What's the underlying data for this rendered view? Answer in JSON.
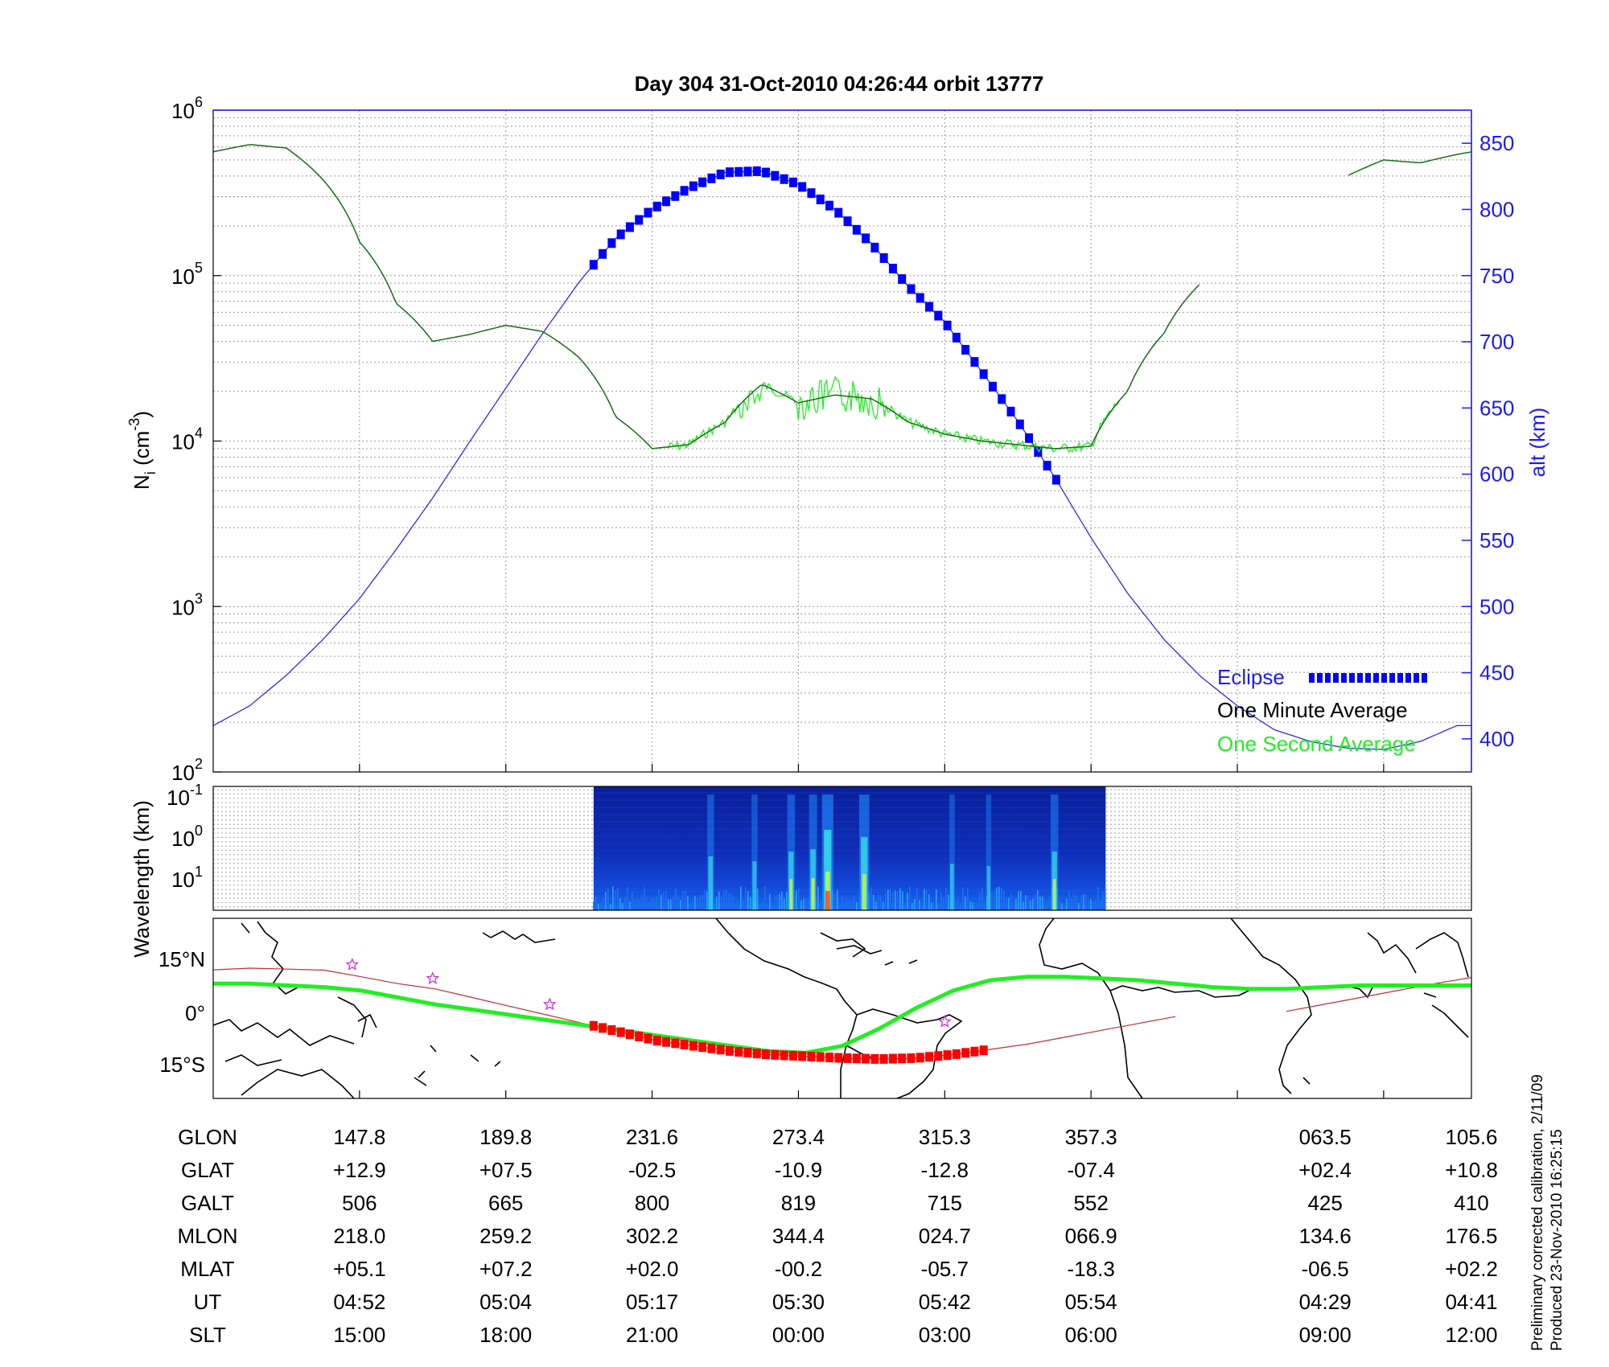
{
  "title": "Day 304  31-Oct-2010 04:26:44   orbit 13777",
  "colors": {
    "alt": "#1a1aff",
    "minute": "#1a6b1a",
    "second": "#22ee22",
    "eclipse": "#0000ff",
    "track": "#22ee22",
    "orbit": "#c03030",
    "eclipse_track": "#ff0000",
    "star": "#cc33cc"
  },
  "chart_data": [
    {
      "type": "line",
      "title": "Day 304  31-Oct-2010 04:26:44   orbit 13777",
      "ylabel_left": "N",
      "ylabel_left_sub": "i",
      "ylabel_left_unit": " (cm",
      "ylabel_left_exp": "-3",
      "ylabel_left_close": ")",
      "ylabel_right": "alt (km)",
      "y_left_scale": "log",
      "y_left_range": [
        100,
        1000000
      ],
      "y_left_ticks": [
        {
          "base": "10",
          "exp": "2"
        },
        {
          "base": "10",
          "exp": "3"
        },
        {
          "base": "10",
          "exp": "4"
        },
        {
          "base": "10",
          "exp": "5"
        },
        {
          "base": "10",
          "exp": "6"
        }
      ],
      "y_right_range": [
        375,
        875
      ],
      "y_right_ticks": [
        "400",
        "450",
        "500",
        "550",
        "600",
        "650",
        "700",
        "750",
        "800",
        "850"
      ],
      "grid": true,
      "legend_position": "bottom-right",
      "legend": {
        "eclipse": "Eclipse",
        "minute": "One Minute Average",
        "second": "One Second Average"
      },
      "x": [
        0,
        0.25,
        0.5,
        0.75,
        1,
        1.25,
        1.5,
        1.75,
        2,
        2.25,
        2.5,
        2.75,
        3,
        3.25,
        3.5,
        3.75,
        4,
        4.25,
        4.5,
        4.75,
        5,
        5.25,
        5.5,
        5.75,
        6,
        6.25,
        6.5,
        6.75,
        7,
        7.25,
        7.5,
        7.75,
        8,
        8.25,
        8.5,
        8.6
      ],
      "altitude_km": [
        410,
        425,
        448,
        475,
        506,
        543,
        582,
        624,
        665,
        706,
        745,
        778,
        800,
        816,
        828,
        829,
        819,
        800,
        774,
        742,
        715,
        678,
        640,
        598,
        552,
        510,
        475,
        447,
        425,
        407,
        398,
        393,
        392,
        398,
        410,
        410
      ],
      "ion_density_minute": [
        560000,
        620000,
        590000,
        380000,
        160000,
        68000,
        40000,
        44000,
        50000,
        46000,
        32000,
        14000,
        9000,
        9500,
        13000,
        22000,
        17000,
        19000,
        18000,
        13000,
        11000,
        10000,
        9500,
        9000,
        9300,
        20000,
        45000,
        90000,
        null,
        null,
        null,
        400000,
        500000,
        480000,
        540000,
        560000
      ],
      "ion_density_second_span": [
        3.1,
        6.2
      ],
      "eclipse_span": [
        2.6,
        5.8
      ]
    },
    {
      "type": "heatmap",
      "ylabel": "Wavelength (km)",
      "y_ticks": [
        {
          "base": "10",
          "exp": "-1"
        },
        {
          "base": "10",
          "exp": "0"
        },
        {
          "base": "10",
          "exp": "1"
        }
      ],
      "x_span": [
        2.6,
        6.1
      ],
      "intensity_peaks": [
        {
          "x": 3.4,
          "strength": 0.45
        },
        {
          "x": 3.7,
          "strength": 0.35
        },
        {
          "x": 3.95,
          "strength": 0.55
        },
        {
          "x": 4.1,
          "strength": 0.6
        },
        {
          "x": 4.2,
          "strength": 1.0
        },
        {
          "x": 4.45,
          "strength": 0.85
        },
        {
          "x": 5.05,
          "strength": 0.3
        },
        {
          "x": 5.75,
          "strength": 0.55
        },
        {
          "x": 5.3,
          "strength": 0.25
        }
      ]
    },
    {
      "type": "map",
      "lat_ticks": [
        "15°N",
        "0°",
        "15°S"
      ],
      "track_lat": [
        9,
        9,
        8.5,
        8,
        7,
        5,
        3,
        1.5,
        0,
        -1.5,
        -3,
        -4.5,
        -6,
        -7.5,
        -9,
        -10.5,
        -11,
        -9,
        -4,
        2,
        7,
        10,
        11,
        11,
        10.5,
        10,
        9,
        8,
        7.5,
        7.5,
        8,
        8.5,
        8.5,
        8.5,
        8.5
      ],
      "orbit_lat": [
        13,
        13.5,
        13.2,
        12.9,
        11,
        9,
        7.5,
        5,
        2.5,
        0,
        -2.5,
        -5,
        -7.5,
        -9,
        -10.5,
        -11.5,
        -12,
        -12.5,
        -12.8,
        -12.5,
        -11.5,
        -10,
        -8.5,
        -6.5,
        -4.5,
        -2.5,
        -0.5,
        null,
        null,
        1,
        3,
        5,
        7,
        9,
        10.8
      ],
      "stars": [
        {
          "x": 0.95,
          "lat": 14.5
        },
        {
          "x": 1.5,
          "lat": 10.5
        },
        {
          "x": 2.3,
          "lat": 3
        },
        {
          "x": 5.0,
          "lat": -2
        }
      ],
      "eclipse_span": [
        2.6,
        5.3
      ]
    }
  ],
  "table": {
    "rows": [
      {
        "label": "GLON",
        "values": [
          "147.8",
          "189.8",
          "231.6",
          "273.4",
          "315.3",
          "357.3",
          "063.5",
          "105.6"
        ]
      },
      {
        "label": "GLAT",
        "values": [
          "+12.9",
          "+07.5",
          "-02.5",
          "-10.9",
          "-12.8",
          "-07.4",
          "+02.4",
          "+10.8"
        ]
      },
      {
        "label": "GALT",
        "values": [
          "506",
          "665",
          "800",
          "819",
          "715",
          "552",
          "425",
          "410"
        ]
      },
      {
        "label": "MLON",
        "values": [
          "218.0",
          "259.2",
          "302.2",
          "344.4",
          "024.7",
          "066.9",
          "134.6",
          "176.5"
        ]
      },
      {
        "label": "MLAT",
        "values": [
          "+05.1",
          "+07.2",
          "+02.0",
          "-00.2",
          "-05.7",
          "-18.3",
          "-06.5",
          "+02.2"
        ]
      },
      {
        "label": "UT",
        "values": [
          "04:52",
          "05:04",
          "05:17",
          "05:30",
          "05:42",
          "05:54",
          "04:29",
          "04:41"
        ]
      },
      {
        "label": "SLT",
        "values": [
          "15:00",
          "18:00",
          "21:00",
          "00:00",
          "03:00",
          "06:00",
          "09:00",
          "12:00"
        ]
      }
    ],
    "column_positions": [
      1,
      2,
      3,
      4,
      5,
      6,
      7.6,
      8.6
    ]
  },
  "footnote": {
    "line1": "Preliminary corrected calibration, 2/11/09",
    "line2": "Produced 23-Nov-2010 16:25:15"
  }
}
